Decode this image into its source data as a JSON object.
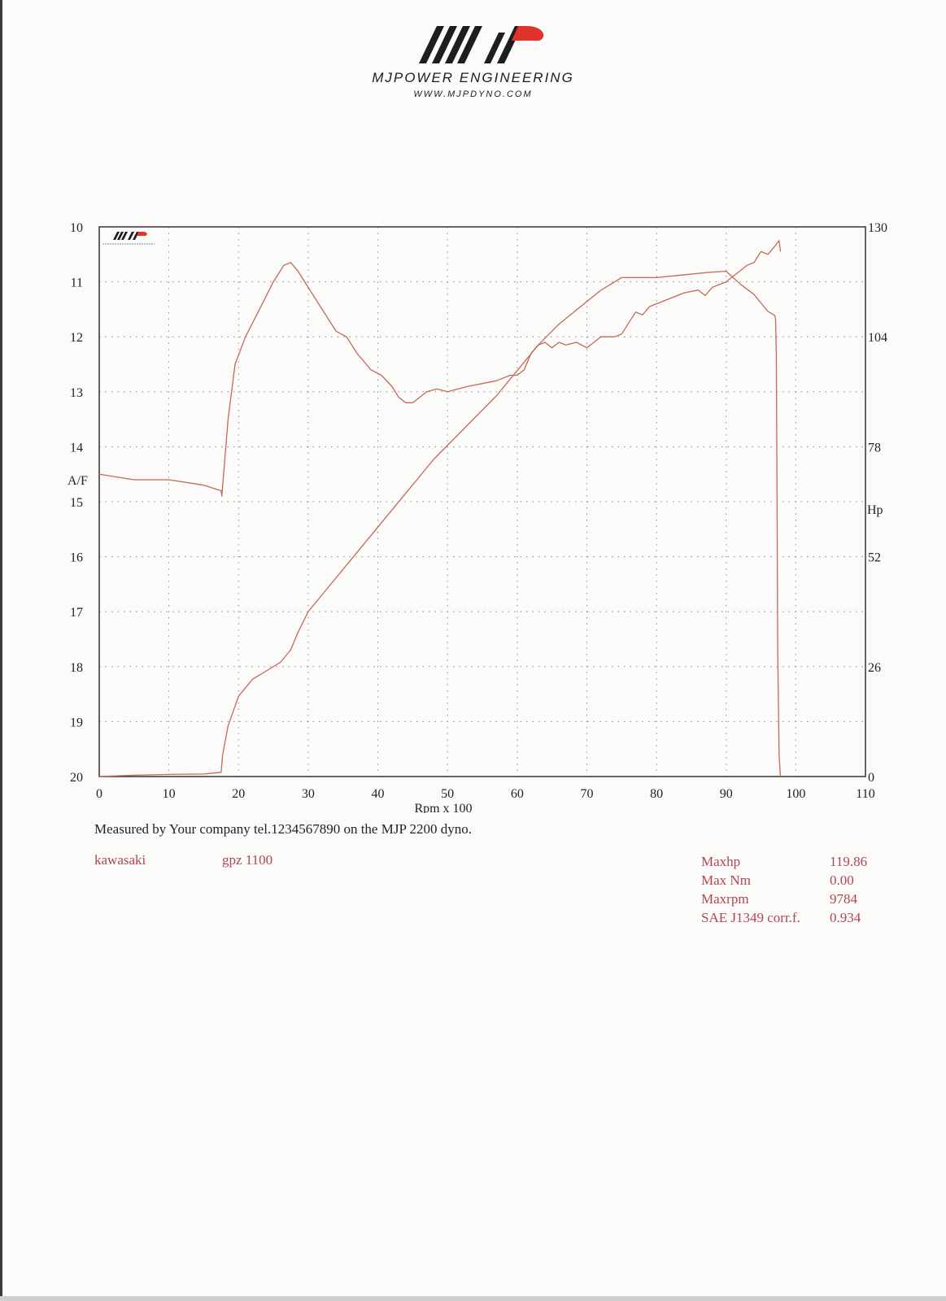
{
  "brand": {
    "name": "MJPOWER ENGINEERING",
    "url": "WWW.MJPDYNO.COM",
    "logo_text": "MJP",
    "colors": {
      "dark": "#1e1e1e",
      "accent": "#e0342b"
    }
  },
  "chart_data": {
    "type": "line",
    "xlabel": "Rpm x 100",
    "x_ticks": [
      0,
      10,
      20,
      30,
      40,
      50,
      60,
      70,
      80,
      90,
      100,
      110
    ],
    "xlim": [
      0,
      110
    ],
    "y_left": {
      "label": "A/F",
      "ticks": [
        10,
        11,
        12,
        13,
        14,
        15,
        16,
        17,
        18,
        19,
        20
      ],
      "range": [
        10,
        20
      ],
      "inverted": true
    },
    "y_right": {
      "label": "Hp",
      "ticks": [
        0,
        26,
        52,
        78,
        104,
        130
      ],
      "range": [
        0,
        130
      ]
    },
    "grid": "dotted",
    "line_color": "#c46a55",
    "series": [
      {
        "axis": "y_left",
        "x": [
          0,
          5,
          10,
          15,
          17.5,
          17.6,
          18.5,
          19.5,
          21,
          23,
          25,
          26.5,
          27.5,
          28.5,
          30,
          32,
          34,
          35.5,
          37,
          39,
          40.5,
          42,
          43,
          44,
          45,
          46,
          47,
          48.5,
          50,
          51.5,
          53,
          55,
          57,
          59,
          60,
          61,
          62,
          63,
          64,
          65,
          66,
          67,
          68.5,
          70,
          72,
          74,
          75,
          76,
          77,
          78,
          79,
          80,
          82,
          84,
          86,
          87,
          88,
          89,
          90,
          91,
          92,
          93,
          94,
          95,
          96,
          97,
          97.3,
          97.6,
          97.8
        ],
        "values": [
          14.5,
          14.6,
          14.6,
          14.7,
          14.8,
          14.9,
          13.5,
          12.5,
          12,
          11.5,
          11.0,
          10.7,
          10.65,
          10.8,
          11.1,
          11.5,
          11.9,
          12.0,
          12.3,
          12.6,
          12.7,
          12.9,
          13.1,
          13.2,
          13.2,
          13.1,
          13.0,
          12.95,
          13.0,
          12.95,
          12.9,
          12.85,
          12.8,
          12.7,
          12.7,
          12.6,
          12.3,
          12.15,
          12.1,
          12.2,
          12.1,
          12.15,
          12.1,
          12.2,
          12.0,
          12.0,
          11.95,
          11.75,
          11.55,
          11.6,
          11.45,
          11.4,
          11.3,
          11.2,
          11.15,
          11.25,
          11.1,
          11.05,
          11.0,
          10.9,
          10.8,
          10.7,
          10.65,
          10.45,
          10.5,
          10.35,
          10.3,
          10.25,
          10.45
        ]
      },
      {
        "axis": "y_right",
        "name": "Hp",
        "x": [
          0,
          5,
          10,
          15,
          17.5,
          17.7,
          18.5,
          20,
          22,
          24,
          26,
          27.5,
          28.5,
          30,
          33,
          36,
          39,
          42,
          45,
          48,
          51,
          54,
          57,
          60,
          63,
          66,
          69,
          72,
          75,
          78,
          80,
          83,
          86,
          88,
          90,
          92,
          94,
          95,
          96,
          96.5,
          97,
          97.1,
          97.2,
          97.3,
          97.4,
          97.6,
          97.8
        ],
        "values": [
          0,
          0.3,
          0.5,
          0.6,
          1,
          5,
          12,
          19,
          23,
          25,
          27,
          30,
          34,
          39,
          45,
          51,
          57,
          63,
          69,
          75,
          80,
          85,
          90,
          96,
          102,
          107,
          111,
          115,
          118,
          118,
          118,
          118.5,
          119,
          119.3,
          119.5,
          116.5,
          114,
          112,
          110,
          109.5,
          109,
          108,
          100,
          70,
          30,
          5,
          0
        ]
      }
    ]
  },
  "measured_text": "Measured by Your company tel.1234567890 on the MJP 2200 dyno.",
  "vehicle": {
    "make": "kawasaki",
    "model": "gpz 1100"
  },
  "stats": [
    {
      "label": "Maxhp",
      "value": "119.86"
    },
    {
      "label": "Max Nm",
      "value": "0.00"
    },
    {
      "label": "Maxrpm",
      "value": "9784"
    },
    {
      "label": "SAE J1349 corr.f.",
      "value": "0.934"
    }
  ]
}
